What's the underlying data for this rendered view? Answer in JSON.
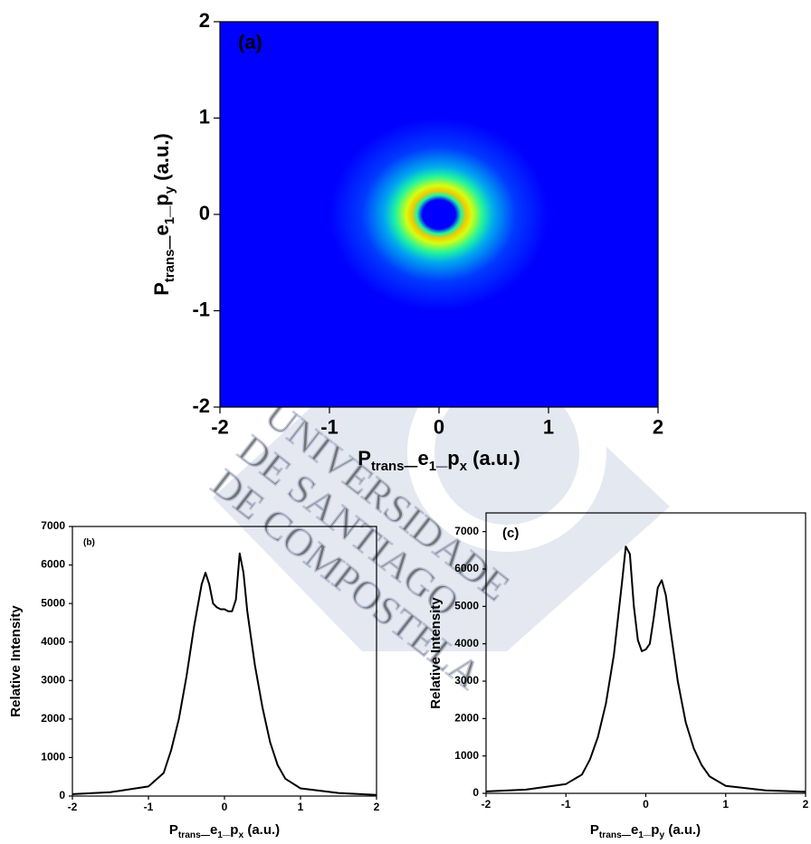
{
  "chart_data": [
    {
      "type": "heatmap",
      "annotation": "(a)",
      "xlabel": {
        "parts": [
          "P",
          "trans—",
          "e",
          "1",
          "_p",
          "x",
          " (a.u.)"
        ],
        "subscript": [
          false,
          true,
          false,
          true,
          false,
          true,
          false
        ]
      },
      "ylabel": {
        "parts": [
          "P",
          "trans—",
          "e",
          "1",
          "_p",
          "y",
          " (a.u.)"
        ],
        "subscript": [
          false,
          true,
          false,
          true,
          false,
          true,
          false
        ]
      },
      "xlim": [
        -2,
        2
      ],
      "ylim": [
        -2,
        2
      ],
      "xticks": [
        -2,
        -1,
        0,
        1,
        2
      ],
      "yticks": [
        -2,
        -1,
        0,
        1,
        2
      ],
      "colormap": [
        "#0000ff",
        "#0090ff",
        "#00f0c0",
        "#80ff40",
        "#f0ff00",
        "#ff3000"
      ],
      "profile": {
        "radius": [
          0,
          0.15,
          0.2,
          0.25,
          0.3,
          0.4,
          0.5,
          0.7,
          1.0
        ],
        "intensity": [
          0,
          0,
          0.45,
          0.85,
          0.75,
          0.45,
          0.25,
          0.08,
          0
        ]
      }
    },
    {
      "type": "line",
      "annotation": "(b)",
      "color": "#000000",
      "xlabel": {
        "parts": [
          "P",
          "trans—",
          "e",
          "1",
          "_p",
          "x",
          " (a.u.)"
        ],
        "subscript": [
          false,
          true,
          false,
          true,
          false,
          true,
          false
        ]
      },
      "ylabel": "Relative Intensity",
      "xlim": [
        -2,
        2
      ],
      "ylim": [
        0,
        7000
      ],
      "xticks": [
        -2,
        -1,
        0,
        1,
        2
      ],
      "yticks": [
        0,
        1000,
        2000,
        3000,
        4000,
        5000,
        6000,
        7000
      ],
      "x": [
        -2,
        -1.5,
        -1,
        -0.8,
        -0.7,
        -0.6,
        -0.5,
        -0.4,
        -0.3,
        -0.25,
        -0.2,
        -0.15,
        -0.1,
        -0.05,
        0,
        0.05,
        0.1,
        0.15,
        0.2,
        0.25,
        0.3,
        0.4,
        0.5,
        0.6,
        0.7,
        0.8,
        1,
        1.5,
        2
      ],
      "values": [
        50,
        100,
        250,
        600,
        1200,
        2000,
        3100,
        4400,
        5500,
        5800,
        5500,
        5000,
        4900,
        4850,
        4850,
        4800,
        4800,
        5100,
        6300,
        5800,
        4800,
        3400,
        2300,
        1400,
        800,
        450,
        200,
        80,
        30
      ]
    },
    {
      "type": "line",
      "annotation": "(c)",
      "color": "#000000",
      "xlabel": {
        "parts": [
          "P",
          "trans—",
          "e",
          "1",
          "_p",
          "y",
          " (a.u.)"
        ],
        "subscript": [
          false,
          true,
          false,
          true,
          false,
          true,
          false
        ]
      },
      "ylabel": "Relative Intensity",
      "xlim": [
        -2,
        2
      ],
      "ylim": [
        0,
        7500
      ],
      "xticks": [
        -2,
        -1,
        0,
        1,
        2
      ],
      "yticks": [
        0,
        1000,
        2000,
        3000,
        4000,
        5000,
        6000,
        7000
      ],
      "x": [
        -2,
        -1.5,
        -1,
        -0.8,
        -0.7,
        -0.6,
        -0.5,
        -0.4,
        -0.3,
        -0.25,
        -0.2,
        -0.15,
        -0.1,
        -0.05,
        0,
        0.05,
        0.1,
        0.15,
        0.2,
        0.25,
        0.3,
        0.4,
        0.5,
        0.6,
        0.7,
        0.8,
        1,
        1.5,
        2
      ],
      "values": [
        50,
        100,
        250,
        500,
        900,
        1500,
        2400,
        3700,
        5600,
        6600,
        6400,
        5000,
        4100,
        3800,
        3850,
        4000,
        4700,
        5500,
        5700,
        5300,
        4500,
        3000,
        1900,
        1200,
        750,
        450,
        200,
        80,
        40
      ]
    }
  ],
  "watermark": [
    "UNIVERSIDADE",
    "DE SANTIAGO",
    "DE COMPOSTELA"
  ]
}
